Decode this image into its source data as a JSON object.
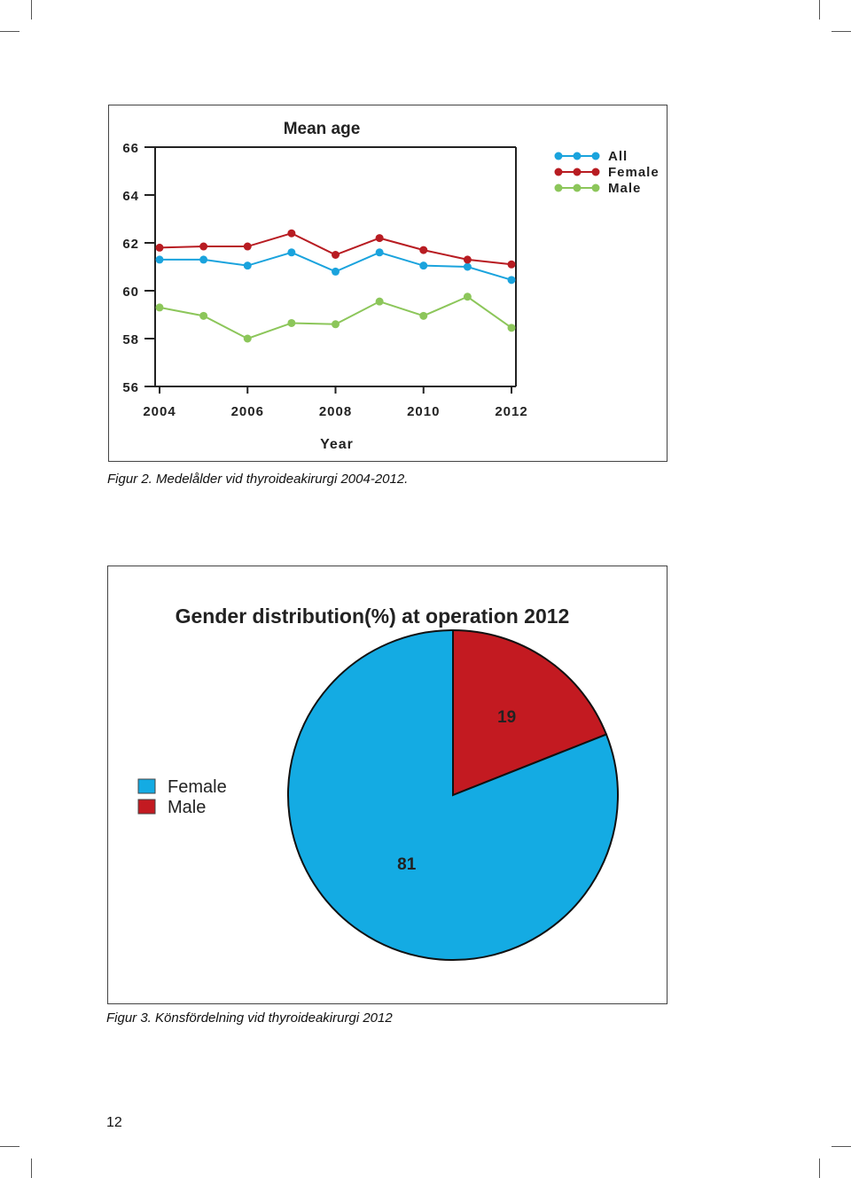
{
  "colors": {
    "all": "#1aa3dd",
    "female": "#b81c22",
    "male": "#8cc65a",
    "pie_female": "#14abe3",
    "pie_male": "#c31a21"
  },
  "chart_data": [
    {
      "type": "line",
      "title": "Mean age",
      "xlabel": "Year",
      "ylabel": "",
      "x_ticks": [
        "2004",
        "2006",
        "2008",
        "2010",
        "2012"
      ],
      "y_ticks": [
        "56",
        "58",
        "60",
        "62",
        "64",
        "66"
      ],
      "xlim": [
        2004,
        2012
      ],
      "ylim": [
        56,
        66
      ],
      "grid": false,
      "legend_position": "top-right",
      "x": [
        2004,
        2005,
        2006,
        2007,
        2008,
        2009,
        2010,
        2011,
        2012
      ],
      "series": [
        {
          "name": "All",
          "color": "#1aa3dd",
          "values": [
            61.3,
            61.3,
            61.05,
            61.6,
            60.8,
            61.6,
            61.05,
            61.0,
            60.45
          ]
        },
        {
          "name": "Female",
          "color": "#b81c22",
          "values": [
            61.8,
            61.85,
            61.85,
            62.4,
            61.5,
            62.2,
            61.7,
            61.3,
            61.1
          ]
        },
        {
          "name": "Male",
          "color": "#8cc65a",
          "values": [
            59.3,
            58.95,
            58.0,
            58.65,
            58.6,
            59.55,
            58.95,
            59.75,
            58.45
          ]
        }
      ]
    },
    {
      "type": "pie",
      "title": "Gender distribution(%) at operation 2012",
      "legend_position": "left",
      "slices": [
        {
          "label": "Female",
          "value": 81,
          "value_label": "81",
          "color": "#14abe3"
        },
        {
          "label": "Male",
          "value": 19,
          "value_label": "19",
          "color": "#c31a21"
        }
      ]
    }
  ],
  "captions": {
    "fig2": "Figur 2. Medelålder vid thyroideakirurgi 2004-2012.",
    "fig3": "Figur 3. Könsfördelning vid thyroideakirurgi 2012"
  },
  "page_number": "12"
}
